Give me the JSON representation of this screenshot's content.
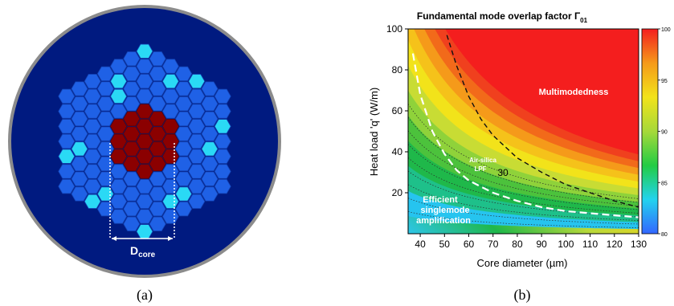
{
  "panel_a": {
    "caption": "(a)",
    "dimension_label_main": "D",
    "dimension_label_sub": "core",
    "colors": {
      "background_disk": "#001a80",
      "disk_border": "#8c8c8c",
      "cladding_hex": "#1f61e6",
      "doped_hex": "#2ad9f5",
      "core": "#8b0000"
    }
  },
  "panel_b": {
    "caption": "(b)",
    "title_main": "Fundamental mode overlap factor Γ",
    "title_sub": "01",
    "xlabel": "Core diameter (µm)",
    "ylabel": "Heat load 'q' (W/m)",
    "region_labels": {
      "multimode": "Multimodedness",
      "singlemode_line1": "Efficient",
      "singlemode_line2": "singlemode",
      "singlemode_line3": "amplification",
      "lpf_line1": "Air-silica",
      "lpf_line2": "LPF",
      "contour_value": "30"
    }
  },
  "chart_data": {
    "type": "heatmap",
    "title": "Fundamental mode overlap factor Γ01",
    "xlabel": "Core diameter (µm)",
    "ylabel": "Heat load 'q' (W/m)",
    "xlim": [
      35,
      130
    ],
    "ylim": [
      0,
      100
    ],
    "x_ticks": [
      40,
      50,
      60,
      70,
      80,
      90,
      100,
      110,
      120,
      130
    ],
    "y_ticks": [
      20,
      40,
      60,
      80,
      100
    ],
    "colorbar": {
      "range": [
        80,
        100
      ],
      "ticks": [
        80,
        85,
        90,
        95,
        100
      ],
      "colormap": [
        "#3366ff",
        "#22d3ee",
        "#22cc44",
        "#a6d93a",
        "#f2e31a",
        "#f59a1a",
        "#f41e1e"
      ]
    },
    "series": [
      {
        "name": "Air-silica LPF",
        "style": "white-dashed",
        "x": [
          37,
          40,
          45,
          50,
          55,
          60,
          70,
          80,
          90,
          100,
          110,
          120,
          130
        ],
        "y": [
          88,
          68,
          50,
          39,
          31,
          26,
          20,
          16,
          13,
          11,
          10,
          9,
          8
        ]
      },
      {
        "name": "30",
        "style": "black-dashed",
        "x": [
          51,
          55,
          60,
          65,
          70,
          80,
          90,
          100,
          110,
          120,
          130
        ],
        "y": [
          97,
          82,
          67,
          56,
          48,
          37,
          30,
          24,
          20,
          16,
          13
        ]
      }
    ]
  }
}
